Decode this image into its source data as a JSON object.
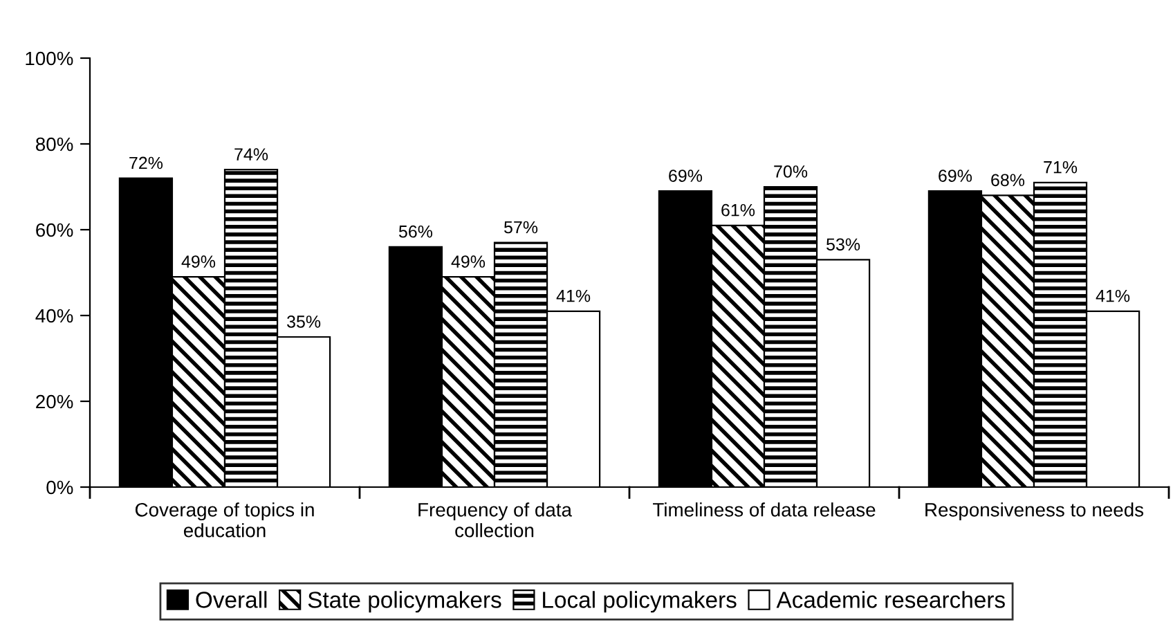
{
  "chart_data": {
    "type": "bar",
    "categories": [
      "Coverage of topics in\neducation",
      "Frequency of data\ncollection",
      "Timeliness of data release",
      "Responsiveness to needs"
    ],
    "series": [
      {
        "name": "Overall",
        "color": "#000000",
        "values": [
          72,
          56,
          69,
          69
        ],
        "value_labels": [
          "72%",
          "56%",
          "69%",
          "69%"
        ]
      },
      {
        "name": "State policymakers",
        "color": "#000000",
        "values": [
          49,
          49,
          61,
          68
        ],
        "value_labels": [
          "49%",
          "49%",
          "61%",
          "68%"
        ]
      },
      {
        "name": "Local policymakers",
        "color": "#000000",
        "values": [
          74,
          57,
          70,
          71
        ],
        "value_labels": [
          "74%",
          "57%",
          "70%",
          "71%"
        ]
      },
      {
        "name": "Academic researchers",
        "color": "#ffffff",
        "values": [
          35,
          41,
          53,
          41
        ],
        "value_labels": [
          "35%",
          "41%",
          "53%",
          "41%"
        ]
      }
    ],
    "ylim": [
      0,
      100
    ],
    "yticks": [
      {
        "value": 0,
        "label": "0%"
      },
      {
        "value": 20,
        "label": "20%"
      },
      {
        "value": 40,
        "label": "40%"
      },
      {
        "value": 60,
        "label": "60%"
      },
      {
        "value": 80,
        "label": "80%"
      },
      {
        "value": 100,
        "label": "100%"
      }
    ],
    "grid": false,
    "legend": "bottom"
  }
}
